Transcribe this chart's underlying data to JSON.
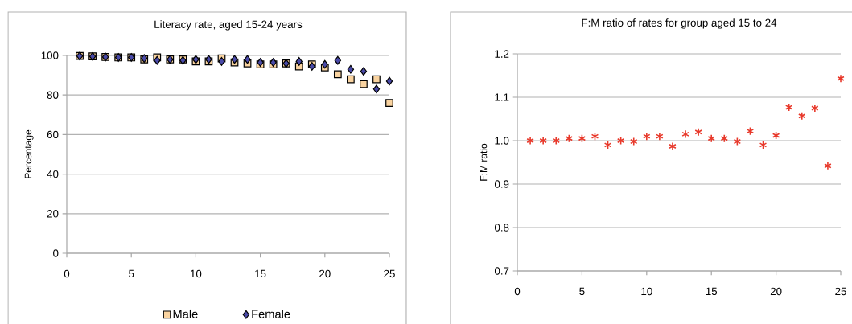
{
  "chart_data": [
    {
      "type": "scatter",
      "title": "Literacy rate, aged 15-24 years",
      "ylabel": "Percentage",
      "x": [
        1,
        2,
        3,
        4,
        5,
        6,
        7,
        8,
        9,
        10,
        11,
        12,
        13,
        14,
        15,
        16,
        17,
        18,
        19,
        20,
        21,
        22,
        23,
        24,
        25
      ],
      "series": [
        {
          "name": "Male",
          "color": "#f9d3a0",
          "marker": "square",
          "values": [
            99.7,
            99.5,
            99.2,
            99,
            99,
            98,
            99,
            98,
            98,
            97,
            97,
            98.5,
            96.5,
            96,
            95.5,
            95.5,
            96,
            94.5,
            95.5,
            94,
            90.5,
            88,
            85.5,
            88,
            76
          ]
        },
        {
          "name": "Female",
          "color": "#4a4aa8",
          "marker": "diamond",
          "values": [
            99.7,
            99.5,
            99.2,
            99,
            99,
            98.5,
            97.5,
            98,
            97.5,
            98,
            98,
            97,
            98,
            98,
            96.5,
            96.5,
            96,
            97,
            94.5,
            95.5,
            97.5,
            93,
            92,
            83,
            87
          ]
        }
      ],
      "xlim": [
        0,
        25
      ],
      "xticks": [
        0,
        5,
        10,
        15,
        20,
        25
      ],
      "ylim": [
        0,
        100
      ],
      "yticks": [
        0,
        20,
        40,
        60,
        80,
        100
      ],
      "grid": "y",
      "legend": "bottom"
    },
    {
      "type": "scatter",
      "title": "F:M ratio of rates for group aged 15 to 24",
      "ylabel": "F:M ratio",
      "x": [
        1,
        2,
        3,
        4,
        5,
        6,
        7,
        8,
        9,
        10,
        11,
        12,
        13,
        14,
        15,
        16,
        17,
        18,
        19,
        20,
        21,
        22,
        23,
        24,
        25
      ],
      "series": [
        {
          "color": "#e8392b",
          "marker": "cross",
          "values": [
            1.0,
            1.0,
            1.0,
            1.005,
            1.005,
            1.01,
            0.99,
            1.0,
            0.998,
            1.01,
            1.01,
            0.987,
            1.015,
            1.02,
            1.005,
            1.005,
            0.998,
            1.022,
            0.99,
            1.012,
            1.077,
            1.057,
            1.075,
            0.942,
            1.143
          ]
        }
      ],
      "xlim": [
        0,
        25
      ],
      "xticks": [
        0,
        5,
        10,
        15,
        20,
        25
      ],
      "ylim": [
        0.7,
        1.2
      ],
      "yticks": [
        0.7,
        0.8,
        0.9,
        {
          "value": 1,
          "label": "1.0"
        },
        1.1,
        1.2
      ],
      "grid": "y"
    }
  ]
}
